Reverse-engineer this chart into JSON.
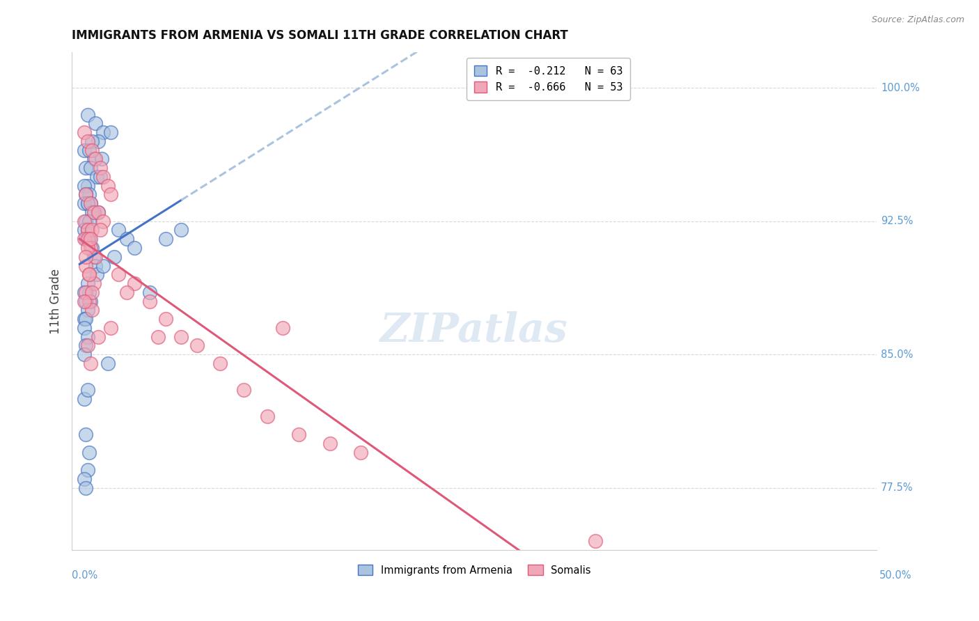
{
  "title": "IMMIGRANTS FROM ARMENIA VS SOMALI 11TH GRADE CORRELATION CHART",
  "source": "Source: ZipAtlas.com",
  "ylabel": "11th Grade",
  "y_ticks": [
    77.5,
    85.0,
    92.5,
    100.0
  ],
  "y_tick_labels": [
    "77.5%",
    "85.0%",
    "92.5%",
    "100.0%"
  ],
  "legend_label1": "Immigrants from Armenia",
  "legend_label2": "Somalis",
  "r1": -0.212,
  "n1": 63,
  "r2": -0.666,
  "n2": 53,
  "color_blue": "#aac4e0",
  "color_pink": "#f0a8b8",
  "line_blue": "#4472c4",
  "line_pink": "#e05878",
  "line_blue_dashed": "#aac4e0",
  "background": "#ffffff",
  "grid_color": "#d8d8d8",
  "right_label_color": "#5b9bd5",
  "xmin": 0.0,
  "xmax": 50.0,
  "ymin": 74.0,
  "ymax": 102.0,
  "arm_x": [
    0.5,
    1.0,
    1.5,
    2.0,
    1.2,
    0.8,
    0.3,
    0.6,
    0.9,
    1.4,
    0.4,
    0.7,
    1.1,
    1.3,
    0.5,
    0.3,
    0.6,
    0.4,
    0.5,
    0.7,
    0.9,
    1.2,
    0.3,
    0.5,
    0.8,
    0.4,
    0.6,
    0.3,
    0.5,
    0.4,
    0.6,
    2.5,
    3.0,
    3.5,
    2.2,
    0.8,
    0.9,
    1.0,
    1.1,
    0.5,
    0.6,
    0.7,
    0.3,
    0.4,
    0.5,
    0.3,
    5.5,
    0.4,
    0.3,
    0.5,
    1.5,
    0.4,
    0.3,
    1.8,
    4.5,
    0.3,
    0.4,
    0.6,
    6.5,
    0.5,
    0.3,
    0.4,
    0.5
  ],
  "arm_y": [
    98.5,
    98.0,
    97.5,
    97.5,
    97.0,
    97.0,
    96.5,
    96.5,
    96.0,
    96.0,
    95.5,
    95.5,
    95.0,
    95.0,
    94.5,
    94.5,
    94.0,
    94.0,
    93.5,
    93.5,
    93.0,
    93.0,
    93.5,
    93.5,
    93.0,
    92.5,
    92.5,
    92.0,
    92.0,
    91.5,
    91.5,
    92.0,
    91.5,
    91.0,
    90.5,
    91.0,
    90.5,
    90.0,
    89.5,
    89.0,
    88.5,
    88.0,
    88.5,
    88.0,
    87.5,
    87.0,
    91.5,
    87.0,
    86.5,
    86.0,
    90.0,
    85.5,
    85.0,
    84.5,
    88.5,
    82.5,
    80.5,
    79.5,
    92.0,
    78.5,
    78.0,
    77.5,
    83.0
  ],
  "som_x": [
    0.3,
    0.5,
    0.8,
    1.0,
    1.3,
    1.5,
    1.8,
    2.0,
    0.4,
    0.7,
    0.9,
    1.2,
    0.3,
    0.5,
    0.8,
    0.3,
    0.5,
    0.7,
    1.0,
    1.5,
    0.4,
    0.6,
    0.9,
    1.3,
    0.4,
    0.6,
    0.8,
    2.5,
    3.5,
    4.5,
    5.5,
    6.5,
    7.5,
    9.0,
    10.5,
    12.0,
    14.0,
    16.0,
    18.0,
    0.5,
    0.7,
    0.4,
    0.6,
    0.8,
    0.3,
    2.0,
    1.2,
    0.5,
    0.7,
    13.0,
    3.0,
    5.0,
    33.0
  ],
  "som_y": [
    97.5,
    97.0,
    96.5,
    96.0,
    95.5,
    95.0,
    94.5,
    94.0,
    94.0,
    93.5,
    93.0,
    93.0,
    92.5,
    92.0,
    92.0,
    91.5,
    91.5,
    91.0,
    90.5,
    92.5,
    90.0,
    89.5,
    89.0,
    92.0,
    88.5,
    88.0,
    87.5,
    89.5,
    89.0,
    88.0,
    87.0,
    86.0,
    85.5,
    84.5,
    83.0,
    81.5,
    80.5,
    80.0,
    79.5,
    91.0,
    91.5,
    90.5,
    89.5,
    88.5,
    88.0,
    86.5,
    86.0,
    85.5,
    84.5,
    86.5,
    88.5,
    86.0,
    74.5
  ]
}
